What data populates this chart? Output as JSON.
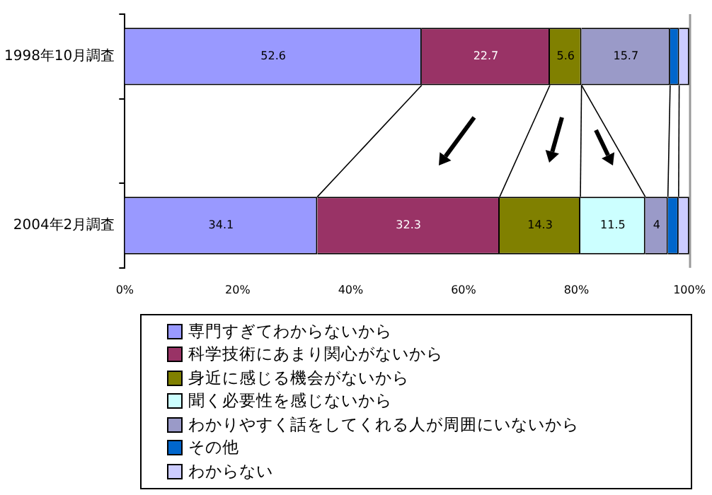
{
  "chart_data": {
    "type": "bar",
    "orientation": "horizontal",
    "stacked": true,
    "categories": [
      "1998年10月調査",
      null,
      "2004年2月調査"
    ],
    "series": [
      {
        "name": "専門すぎてわからないから",
        "color": "#9999ff",
        "values": [
          52.6,
          null,
          34.1
        ],
        "value_labels": [
          "52.6",
          null,
          "34.1"
        ]
      },
      {
        "name": "科学技術にあまり関心がないから",
        "color": "#993366",
        "values": [
          22.7,
          null,
          32.3
        ],
        "value_labels": [
          "22.7",
          null,
          "32.3"
        ]
      },
      {
        "name": "身近に感じる機会がないから",
        "color": "#808000",
        "values": [
          5.6,
          null,
          14.3
        ],
        "value_labels": [
          "5.6",
          null,
          "14.3"
        ]
      },
      {
        "name": "聞く必要性を感じないから",
        "color": "#ccffff",
        "values": [
          null,
          null,
          11.5
        ],
        "value_labels": [
          null,
          null,
          "11.5"
        ]
      },
      {
        "name": "わかりやすく話をしてくれる人が周囲にいないから",
        "color": "#9a9ac8",
        "values": [
          15.7,
          null,
          4
        ],
        "value_labels": [
          "15.7",
          null,
          "4"
        ]
      },
      {
        "name": "その他",
        "color": "#0066cc",
        "values": [
          1.6,
          null,
          1.9
        ]
      },
      {
        "name": "わからない",
        "color": "#ccccff",
        "values": [
          1.8,
          null,
          1.9
        ]
      }
    ],
    "xlim": [
      0,
      100
    ],
    "xticks": [
      {
        "value": 0,
        "label": "0%"
      },
      {
        "value": 20,
        "label": "20%"
      },
      {
        "value": 40,
        "label": "40%"
      },
      {
        "value": 60,
        "label": "60%"
      },
      {
        "value": 80,
        "label": "80%"
      },
      {
        "value": 100,
        "label": "100%"
      }
    ],
    "grid": false,
    "legend": "bottom"
  }
}
